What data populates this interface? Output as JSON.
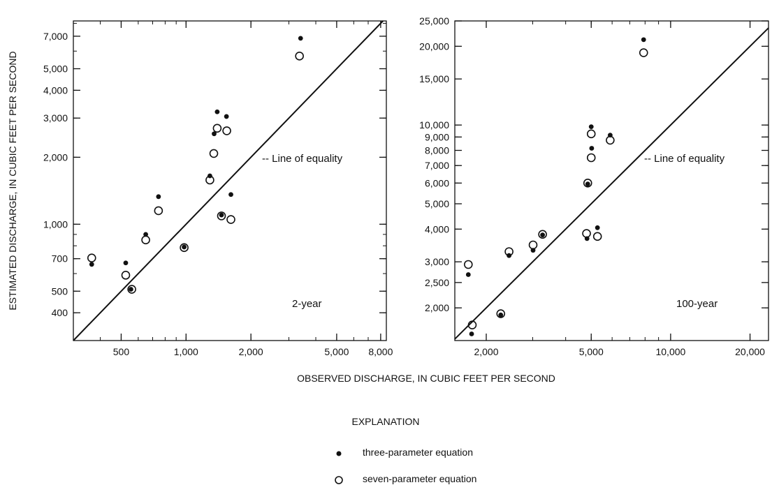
{
  "figure": {
    "ylabel": "ESTIMATED DISCHARGE, IN CUBIC FEET PER SECOND",
    "xlabel": "OBSERVED DISCHARGE, IN CUBIC FEET PER SECOND"
  },
  "explanation": {
    "title": "EXPLANATION",
    "items": [
      {
        "label": "three-parameter equation",
        "marker": "filled-dot"
      },
      {
        "label": "seven-parameter equation",
        "marker": "open-circle"
      }
    ]
  },
  "chart_data": [
    {
      "type": "scatter",
      "panel_label": "2-year",
      "equality_label": "-- Line of equality",
      "xscale": "log",
      "yscale": "log",
      "xlim": [
        300,
        8500
      ],
      "ylim": [
        300,
        8200
      ],
      "xticks": [
        500,
        1000,
        2000,
        5000,
        8000
      ],
      "xtick_labels": [
        "500",
        "1,000",
        "2,000",
        "5,000",
        "8,000"
      ],
      "yticks": [
        400,
        500,
        700,
        1000,
        2000,
        3000,
        4000,
        5000,
        7000
      ],
      "ytick_labels": [
        "400",
        "500",
        "700",
        "1,000",
        "2,000",
        "3,000",
        "4,000",
        "5,000",
        "7,000"
      ],
      "series": [
        {
          "name": "three-parameter equation",
          "marker": "filled-dot",
          "points": [
            [
              365,
              660
            ],
            [
              525,
              670
            ],
            [
              555,
              510
            ],
            [
              650,
              900
            ],
            [
              745,
              1330
            ],
            [
              980,
              790
            ],
            [
              1290,
              1650
            ],
            [
              1350,
              2550
            ],
            [
              1395,
              3200
            ],
            [
              1460,
              1100
            ],
            [
              1540,
              3050
            ],
            [
              1615,
              1360
            ],
            [
              3400,
              6850
            ]
          ]
        },
        {
          "name": "seven-parameter equation",
          "marker": "open-circle",
          "points": [
            [
              365,
              705
            ],
            [
              525,
              590
            ],
            [
              560,
              510
            ],
            [
              650,
              850
            ],
            [
              745,
              1150
            ],
            [
              980,
              785
            ],
            [
              1290,
              1580
            ],
            [
              1345,
              2080
            ],
            [
              1395,
              2700
            ],
            [
              1460,
              1090
            ],
            [
              1545,
              2630
            ],
            [
              1615,
              1050
            ],
            [
              3360,
              5700
            ]
          ]
        }
      ]
    },
    {
      "type": "scatter",
      "panel_label": "100-year",
      "equality_label": "-- Line of equality",
      "xscale": "log",
      "yscale": "log",
      "xlim": [
        1520,
        23500
      ],
      "ylim": [
        1500,
        25000
      ],
      "xticks": [
        2000,
        5000,
        10000,
        20000
      ],
      "xtick_labels": [
        "2,000",
        "5,000",
        "10,000",
        "20,000"
      ],
      "yticks": [
        2000,
        2500,
        3000,
        4000,
        5000,
        6000,
        7000,
        8000,
        9000,
        10000,
        15000,
        20000,
        25000
      ],
      "ytick_labels": [
        "2,000",
        "2,500",
        "3,000",
        "4,000",
        "5,000",
        "6,000",
        "7,000",
        "8,000",
        "9,000",
        "10,000",
        "15,000",
        "20,000",
        "25,000"
      ],
      "series": [
        {
          "name": "three-parameter equation",
          "marker": "filled-dot",
          "points": [
            [
              1710,
              2680
            ],
            [
              1760,
              1590
            ],
            [
              2270,
              1880
            ],
            [
              2440,
              3170
            ],
            [
              3010,
              3320
            ],
            [
              3270,
              3800
            ],
            [
              4820,
              3680
            ],
            [
              4850,
              5950
            ],
            [
              5000,
              9850
            ],
            [
              5020,
              8150
            ],
            [
              5280,
              4050
            ],
            [
              5900,
              9150
            ],
            [
              7900,
              21200
            ]
          ]
        },
        {
          "name": "seven-parameter equation",
          "marker": "open-circle",
          "points": [
            [
              1710,
              2930
            ],
            [
              1770,
              1720
            ],
            [
              2270,
              1900
            ],
            [
              2440,
              3280
            ],
            [
              3010,
              3480
            ],
            [
              3270,
              3820
            ],
            [
              4800,
              3850
            ],
            [
              4850,
              6000
            ],
            [
              5000,
              9250
            ],
            [
              5000,
              7500
            ],
            [
              5280,
              3750
            ],
            [
              5900,
              8750
            ],
            [
              7900,
              18900
            ]
          ]
        }
      ]
    }
  ]
}
